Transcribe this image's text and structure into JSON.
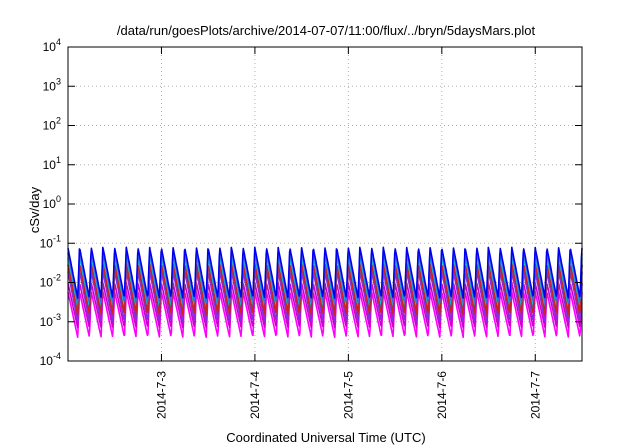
{
  "chart_data": {
    "type": "line",
    "title": "/data/run/goesPlots/archive/2014-07-07/11:00/flux/../bryn/5daysMars.plot",
    "xlabel": "Coordinated Universal Time (UTC)",
    "ylabel": "cSv/day",
    "y_scale": "log",
    "ylim": [
      0.0001,
      10000
    ],
    "y_ticks": [
      {
        "base": "10",
        "exp": "-4"
      },
      {
        "base": "10",
        "exp": "-3"
      },
      {
        "base": "10",
        "exp": "-2"
      },
      {
        "base": "10",
        "exp": "-1"
      },
      {
        "base": "10",
        "exp": "0"
      },
      {
        "base": "10",
        "exp": "1"
      },
      {
        "base": "10",
        "exp": "2"
      },
      {
        "base": "10",
        "exp": "3"
      },
      {
        "base": "10",
        "exp": "4"
      }
    ],
    "xlim": [
      "2014-07-02 00:00",
      "2014-07-07 12:00"
    ],
    "x_ticks": [
      "2014-7-3",
      "2014-7-4",
      "2014-7-5",
      "2014-7-6",
      "2014-7-7"
    ],
    "grid": true,
    "legend": "none",
    "series": [
      {
        "color": "#ff00ff",
        "min": 0.0004,
        "max": 0.006
      },
      {
        "color": "#cc00cc",
        "min": 0.0007,
        "max": 0.01
      },
      {
        "color": "#8a2be2",
        "min": 0.001,
        "max": 0.02
      },
      {
        "color": "#008b8b",
        "min": 0.0018,
        "max": 0.03
      },
      {
        "color": "#00ced1",
        "min": 0.0025,
        "max": 0.045
      },
      {
        "color": "#cc2222",
        "min": 0.0015,
        "max": 0.03
      },
      {
        "color": "#4169e1",
        "min": 0.003,
        "max": 0.06
      },
      {
        "color": "#0000ee",
        "min": 0.004,
        "max": 0.08
      }
    ],
    "oscillation": {
      "period_hours": 3,
      "phase_hours": 0.5
    }
  }
}
